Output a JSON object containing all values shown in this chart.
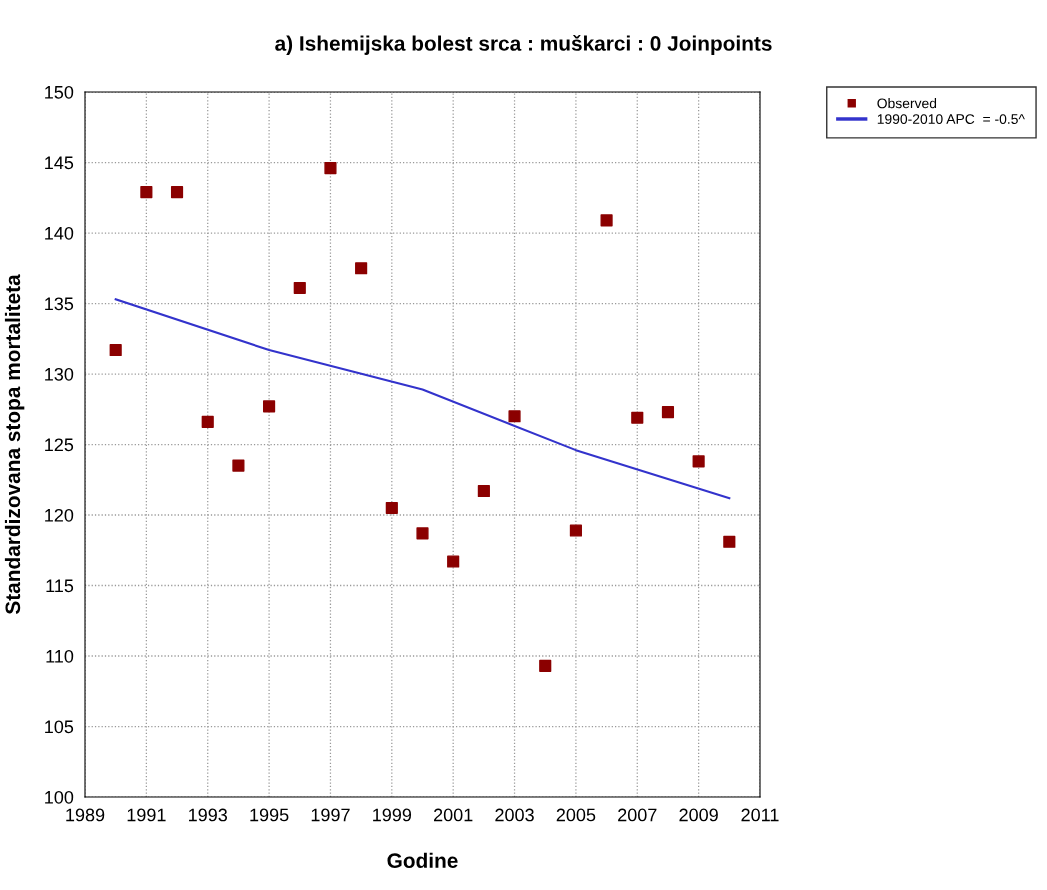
{
  "chart_data": {
    "type": "scatter",
    "title": "a) Ishemijska bolest srca : muškarci : 0 Joinpoints",
    "xlabel": "Godine",
    "ylabel": "Standardizovana stopa mortaliteta",
    "series": [
      {
        "name": "Observed",
        "color": "#8b0000",
        "marker": "square",
        "x": [
          1990,
          1991,
          1992,
          1993,
          1994,
          1995,
          1996,
          1997,
          1998,
          1999,
          2000,
          2001,
          2002,
          2003,
          2004,
          2005,
          2006,
          2007,
          2008,
          2009,
          2010
        ],
        "values": [
          131.7,
          142.9,
          142.9,
          126.6,
          123.5,
          127.7,
          136.1,
          144.6,
          137.5,
          120.5,
          118.7,
          116.7,
          121.7,
          127.0,
          109.3,
          118.9,
          140.9,
          126.9,
          127.3,
          123.8,
          118.1
        ]
      },
      {
        "name": "1990-2010 APC  = -0.5^",
        "type": "line",
        "color": "#3333cc",
        "marker": "none",
        "line_style": "solid",
        "x": [
          1990,
          1995,
          2000,
          2005,
          2010
        ],
        "values": [
          135.3,
          131.7,
          128.9,
          124.6,
          121.2
        ]
      }
    ],
    "xlim": [
      1989,
      2011
    ],
    "xticks": [
      1989,
      1991,
      1993,
      1995,
      1997,
      1999,
      2001,
      2003,
      2005,
      2007,
      2009,
      2011
    ],
    "ylim": [
      100,
      150
    ],
    "yticks": [
      100,
      105,
      110,
      115,
      120,
      125,
      130,
      135,
      140,
      145,
      150
    ],
    "grid": true,
    "legend": "top right"
  }
}
